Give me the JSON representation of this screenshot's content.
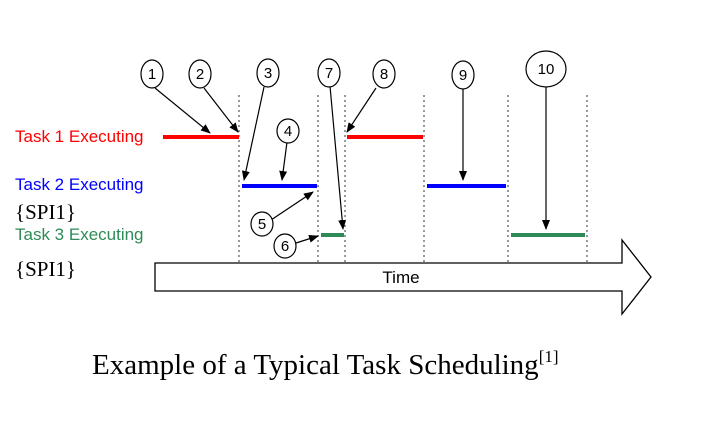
{
  "tasks": [
    {
      "label": "Task 1 Executing",
      "color": "#ff0000"
    },
    {
      "label": "Task 2 Executing",
      "color": "#0000ff"
    },
    {
      "label": "Task 3 Executing",
      "color": "#2e8b57"
    }
  ],
  "spi_labels": [
    "{SPI1}",
    "{SPI1}"
  ],
  "markers": [
    "1",
    "2",
    "3",
    "4",
    "5",
    "6",
    "7",
    "8",
    "9",
    "10"
  ],
  "time_label": "Time",
  "caption": {
    "text": "Example of a Typical Task Scheduling",
    "ref": "[1]"
  }
}
